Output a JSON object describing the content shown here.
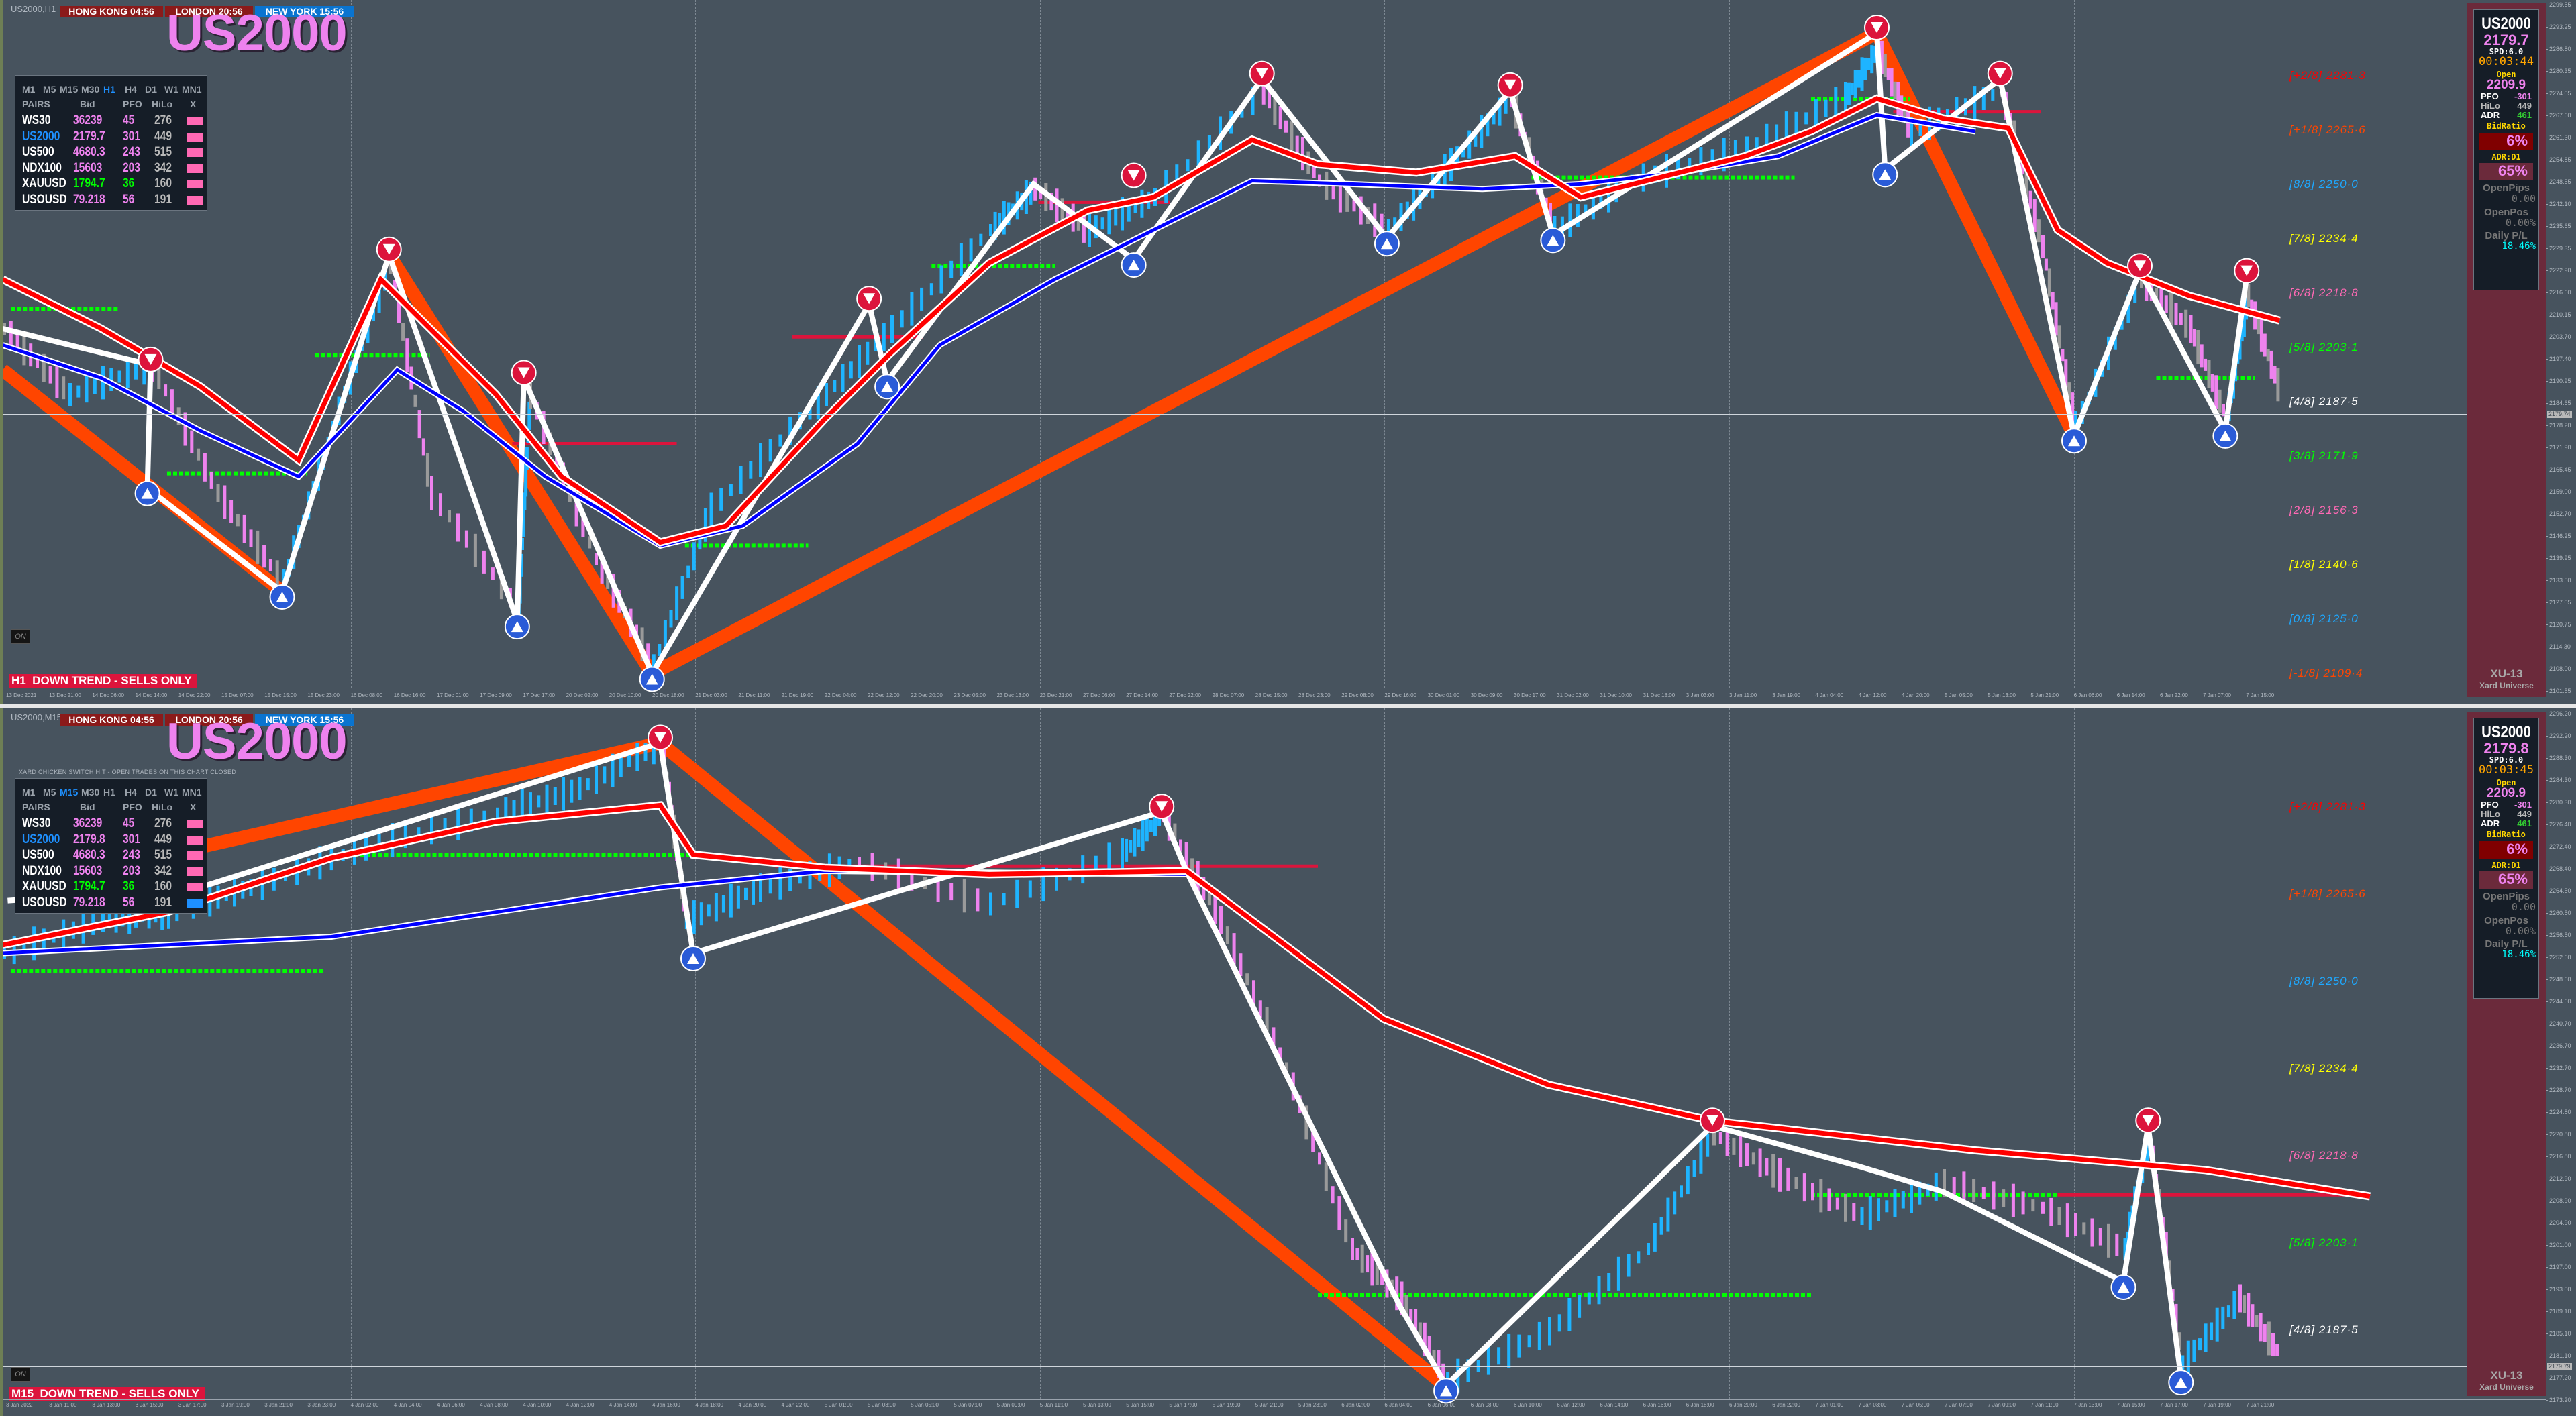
{
  "colors": {
    "background": "#47535e",
    "side_panel": "#6b2a3b",
    "table_bg": "#151d27",
    "trend_down": "#dc143c",
    "symbol_pink": "#ee82ee",
    "active_blue": "#1e90ff",
    "clock_red": "#8b1a1a",
    "clock_blue": "#0a74d0",
    "zigzag_orange": "#ff4500",
    "ma_red": "#ff0000",
    "ma_blue": "#0000ff"
  },
  "panes": [
    {
      "symbol_tf": "US2000,H1",
      "clocks": [
        {
          "label": "HONG KONG  04:56",
          "color": "#8b1a1a"
        },
        {
          "label": "LONDON   20:56",
          "color": "#8b1a1a"
        },
        {
          "label": "NEW YORK  15:56",
          "color": "#0a74d0"
        }
      ],
      "big_symbol": "US2000",
      "table": {
        "timeframes": [
          "M1",
          "M5",
          "M15",
          "M30",
          "H1",
          "H4",
          "D1",
          "W1",
          "MN1"
        ],
        "active_tf": "H1",
        "headers": [
          "PAIRS",
          "Bid",
          "PFO",
          "HiLo",
          "X"
        ],
        "rows": [
          {
            "pair": "WS30",
            "bid": "36239",
            "pfo": "45",
            "hilo": "276",
            "pair_color": "#ffffff",
            "val_color": "#ee82ee",
            "x_color": "#ff69b4"
          },
          {
            "pair": "US2000",
            "bid": "2179.7",
            "pfo": "301",
            "hilo": "449",
            "pair_color": "#1e90ff",
            "val_color": "#ee82ee",
            "x_color": "#ff69b4"
          },
          {
            "pair": "US500",
            "bid": "4680.3",
            "pfo": "243",
            "hilo": "515",
            "pair_color": "#ffffff",
            "val_color": "#ee82ee",
            "x_color": "#ff69b4"
          },
          {
            "pair": "NDX100",
            "bid": "15603",
            "pfo": "203",
            "hilo": "342",
            "pair_color": "#ffffff",
            "val_color": "#ee82ee",
            "x_color": "#ff69b4"
          },
          {
            "pair": "XAUUSD",
            "bid": "1794.7",
            "pfo": "36",
            "hilo": "160",
            "pair_color": "#ffffff",
            "val_color": "#00ff00",
            "x_color": "#ff69b4"
          },
          {
            "pair": "USOUSD",
            "bid": "79.218",
            "pfo": "56",
            "hilo": "191",
            "pair_color": "#ffffff",
            "val_color": "#ee82ee",
            "x_color": "#ff69b4"
          }
        ]
      },
      "on_label": "ON",
      "trend_label": "H1  DOWN TREND - SELLS ONLY",
      "murrey": [
        {
          "label": "[+2/8] 2281·3",
          "color": "#ff0000"
        },
        {
          "label": "[+1/8] 2265·6",
          "color": "#ff4500"
        },
        {
          "label": "[8/8] 2250·0",
          "color": "#1ea8ff"
        },
        {
          "label": "[7/8] 2234·4",
          "color": "#ffff00"
        },
        {
          "label": "[6/8] 2218·8",
          "color": "#ff69b4"
        },
        {
          "label": "[5/8] 2203·1",
          "color": "#00ff00"
        },
        {
          "label": "[4/8] 2187·5",
          "color": "#ffffff"
        },
        {
          "label": "[3/8] 2171·9",
          "color": "#00ff00"
        },
        {
          "label": "[2/8] 2156·3",
          "color": "#ff69b4"
        },
        {
          "label": "[1/8] 2140·6",
          "color": "#ffff00"
        },
        {
          "label": "[0/8] 2125·0",
          "color": "#1ea8ff"
        },
        {
          "label": "[-1/8] 2109·4",
          "color": "#ff4500"
        }
      ],
      "price_ticks": [
        "2299.55",
        "2293.25",
        "2286.80",
        "2280.35",
        "2274.05",
        "2267.60",
        "2261.30",
        "2254.85",
        "2248.55",
        "2242.10",
        "2235.65",
        "2229.35",
        "2222.90",
        "2216.60",
        "2210.15",
        "2203.70",
        "2197.40",
        "2190.95",
        "2184.65",
        "2178.20",
        "2171.90",
        "2165.45",
        "2159.00",
        "2152.70",
        "2146.25",
        "2139.95",
        "2133.50",
        "2127.05",
        "2120.75",
        "2114.30",
        "2108.00",
        "2101.55"
      ],
      "current_price": "2179.74",
      "time_ticks": [
        "13 Dec 2021",
        "13 Dec 21:00",
        "14 Dec 06:00",
        "14 Dec 14:00",
        "14 Dec 22:00",
        "15 Dec 07:00",
        "15 Dec 15:00",
        "15 Dec 23:00",
        "16 Dec 08:00",
        "16 Dec 16:00",
        "17 Dec 01:00",
        "17 Dec 09:00",
        "17 Dec 17:00",
        "20 Dec 02:00",
        "20 Dec 10:00",
        "20 Dec 18:00",
        "21 Dec 03:00",
        "21 Dec 11:00",
        "21 Dec 19:00",
        "22 Dec 04:00",
        "22 Dec 12:00",
        "22 Dec 20:00",
        "23 Dec 05:00",
        "23 Dec 13:00",
        "23 Dec 21:00",
        "27 Dec 06:00",
        "27 Dec 14:00",
        "27 Dec 22:00",
        "28 Dec 07:00",
        "28 Dec 15:00",
        "28 Dec 23:00",
        "29 Dec 08:00",
        "29 Dec 16:00",
        "30 Dec 01:00",
        "30 Dec 09:00",
        "30 Dec 17:00",
        "31 Dec 02:00",
        "31 Dec 10:00",
        "31 Dec 18:00",
        "3 Jan 03:00",
        "3 Jan 11:00",
        "3 Jan 19:00",
        "4 Jan 04:00",
        "4 Jan 12:00",
        "4 Jan 20:00",
        "5 Jan 05:00",
        "5 Jan 13:00",
        "5 Jan 21:00",
        "6 Jan 06:00",
        "6 Jan 14:00",
        "6 Jan 22:00",
        "7 Jan 07:00",
        "7 Jan 15:00"
      ],
      "side": {
        "symbol": "US2000",
        "bid": "2179.7",
        "spread": "SPD:6.0",
        "timer": "00:03:44",
        "open_label": "Open",
        "open": "2209.9",
        "pfo_label": "PFO",
        "pfo": "-301",
        "hilo_label": "HiLo",
        "hilo": "449",
        "adr_label": "ADR",
        "adr": "461",
        "bidratio_label": "BidRatio",
        "bidratio": "6%",
        "adr_d1_label": "ADR:D1",
        "adr_d1": "65%",
        "openpips_label": "OpenPips",
        "openpips": "0.00",
        "openpos_label": "OpenPos",
        "openpos": "0.00%",
        "daily_label": "Daily P/L",
        "daily": "18.46%",
        "brand": "XU-13",
        "brand_sub": "Xard Universe"
      }
    },
    {
      "symbol_tf": "US2000,M15",
      "clocks": [
        {
          "label": "HONG KONG  04:56",
          "color": "#8b1a1a"
        },
        {
          "label": "LONDON   20:56",
          "color": "#8b1a1a"
        },
        {
          "label": "NEW YORK  15:56",
          "color": "#0a74d0"
        }
      ],
      "big_symbol": "US2000",
      "notice": "XARD CHICKEN SWITCH HIT - OPEN TRADES ON THIS CHART CLOSED",
      "table": {
        "timeframes": [
          "M1",
          "M5",
          "M15",
          "M30",
          "H1",
          "H4",
          "D1",
          "W1",
          "MN1"
        ],
        "active_tf": "M15",
        "headers": [
          "PAIRS",
          "Bid",
          "PFO",
          "HiLo",
          "X"
        ],
        "rows": [
          {
            "pair": "WS30",
            "bid": "36239",
            "pfo": "45",
            "hilo": "276",
            "pair_color": "#ffffff",
            "val_color": "#ee82ee",
            "x_color": "#ff69b4"
          },
          {
            "pair": "US2000",
            "bid": "2179.8",
            "pfo": "301",
            "hilo": "449",
            "pair_color": "#1e90ff",
            "val_color": "#ee82ee",
            "x_color": "#ff69b4"
          },
          {
            "pair": "US500",
            "bid": "4680.3",
            "pfo": "243",
            "hilo": "515",
            "pair_color": "#ffffff",
            "val_color": "#ee82ee",
            "x_color": "#ff69b4"
          },
          {
            "pair": "NDX100",
            "bid": "15603",
            "pfo": "203",
            "hilo": "342",
            "pair_color": "#ffffff",
            "val_color": "#ee82ee",
            "x_color": "#ff69b4"
          },
          {
            "pair": "XAUUSD",
            "bid": "1794.7",
            "pfo": "36",
            "hilo": "160",
            "pair_color": "#ffffff",
            "val_color": "#00ff00",
            "x_color": "#ff69b4"
          },
          {
            "pair": "USOUSD",
            "bid": "79.218",
            "pfo": "56",
            "hilo": "191",
            "pair_color": "#ffffff",
            "val_color": "#ee82ee",
            "x_color": "#1e90ff"
          }
        ]
      },
      "on_label": "ON",
      "trend_label": "M15  DOWN TREND - SELLS ONLY",
      "murrey": [
        {
          "label": "[+2/8] 2281·3",
          "color": "#ff0000"
        },
        {
          "label": "[+1/8] 2265·6",
          "color": "#ff4500"
        },
        {
          "label": "[8/8] 2250·0",
          "color": "#1ea8ff"
        },
        {
          "label": "[7/8] 2234·4",
          "color": "#ffff00"
        },
        {
          "label": "[6/8] 2218·8",
          "color": "#ff69b4"
        },
        {
          "label": "[5/8] 2203·1",
          "color": "#00ff00"
        },
        {
          "label": "[4/8] 2187·5",
          "color": "#ffffff"
        }
      ],
      "price_ticks": [
        "2296.20",
        "2292.20",
        "2288.30",
        "2284.30",
        "2280.30",
        "2276.40",
        "2272.40",
        "2268.40",
        "2264.50",
        "2260.50",
        "2256.50",
        "2252.60",
        "2248.60",
        "2244.60",
        "2240.70",
        "2236.70",
        "2232.70",
        "2228.70",
        "2224.80",
        "2220.80",
        "2216.80",
        "2212.90",
        "2208.90",
        "2204.90",
        "2201.00",
        "2197.00",
        "2193.00",
        "2189.10",
        "2185.10",
        "2181.10",
        "2177.20",
        "2173.20"
      ],
      "current_price": "2179.79",
      "time_ticks": [
        "3 Jan 2022",
        "3 Jan 11:00",
        "3 Jan 13:00",
        "3 Jan 15:00",
        "3 Jan 17:00",
        "3 Jan 19:00",
        "3 Jan 21:00",
        "3 Jan 23:00",
        "4 Jan 02:00",
        "4 Jan 04:00",
        "4 Jan 06:00",
        "4 Jan 08:00",
        "4 Jan 10:00",
        "4 Jan 12:00",
        "4 Jan 14:00",
        "4 Jan 16:00",
        "4 Jan 18:00",
        "4 Jan 20:00",
        "4 Jan 22:00",
        "5 Jan 01:00",
        "5 Jan 03:00",
        "5 Jan 05:00",
        "5 Jan 07:00",
        "5 Jan 09:00",
        "5 Jan 11:00",
        "5 Jan 13:00",
        "5 Jan 15:00",
        "5 Jan 17:00",
        "5 Jan 19:00",
        "5 Jan 21:00",
        "5 Jan 23:00",
        "6 Jan 02:00",
        "6 Jan 04:00",
        "6 Jan 06:00",
        "6 Jan 08:00",
        "6 Jan 10:00",
        "6 Jan 12:00",
        "6 Jan 14:00",
        "6 Jan 16:00",
        "6 Jan 18:00",
        "6 Jan 20:00",
        "6 Jan 22:00",
        "7 Jan 01:00",
        "7 Jan 03:00",
        "7 Jan 05:00",
        "7 Jan 07:00",
        "7 Jan 09:00",
        "7 Jan 11:00",
        "7 Jan 13:00",
        "7 Jan 15:00",
        "7 Jan 17:00",
        "7 Jan 19:00",
        "7 Jan 21:00"
      ],
      "side": {
        "symbol": "US2000",
        "bid": "2179.8",
        "spread": "SPD:6.0",
        "timer": "00:03:45",
        "open_label": "Open",
        "open": "2209.9",
        "pfo_label": "PFO",
        "pfo": "-301",
        "hilo_label": "HiLo",
        "hilo": "449",
        "adr_label": "ADR",
        "adr": "461",
        "bidratio_label": "BidRatio",
        "bidratio": "6%",
        "adr_d1_label": "ADR:D1",
        "adr_d1": "65%",
        "openpips_label": "OpenPips",
        "openpips": "0.00",
        "openpos_label": "OpenPos",
        "openpos": "0.00%",
        "daily_label": "Daily P/L",
        "daily": "18.46%",
        "brand": "XU-13",
        "brand_sub": "Xard Universe"
      }
    }
  ]
}
